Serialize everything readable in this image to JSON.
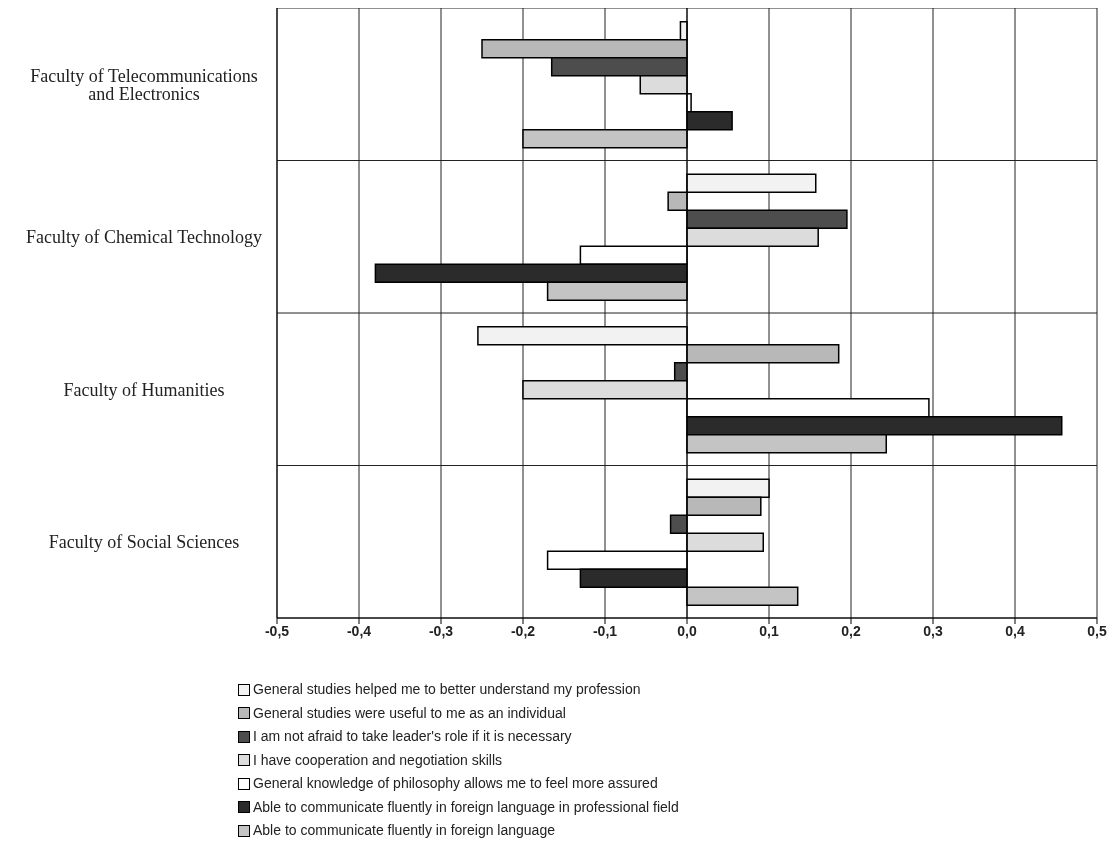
{
  "chart_data": {
    "type": "bar",
    "orientation": "horizontal",
    "categories": [
      "Faculty of Telecommunications and Electronics",
      "Faculty of Chemical Technology",
      "Faculty of Humanities",
      "Faculty of Social Sciences"
    ],
    "series": [
      {
        "name": "General studies helped me to better understand my profession",
        "color": "#f2f2f2",
        "values": [
          -0.008,
          0.157,
          -0.255,
          0.1
        ]
      },
      {
        "name": "General studies were useful to me as an individual",
        "color": "#b8b8b8",
        "values": [
          -0.25,
          -0.023,
          0.185,
          0.09
        ]
      },
      {
        "name": "I am not afraid to take leader's role if it is necessary",
        "color": "#4d4d4d",
        "values": [
          -0.165,
          0.195,
          -0.015,
          -0.02
        ]
      },
      {
        "name": "I have cooperation and negotiation skills",
        "color": "#dcdcdc",
        "values": [
          -0.057,
          0.16,
          -0.2,
          0.093
        ]
      },
      {
        "name": "General knowledge of philosophy allows me to feel more assured",
        "color": "#ffffff",
        "values": [
          0.005,
          -0.13,
          0.295,
          -0.17
        ]
      },
      {
        "name": "Able to communicate fluently in foreign language in professional field",
        "color": "#2b2b2b",
        "values": [
          0.055,
          -0.38,
          0.457,
          -0.13
        ]
      },
      {
        "name": "Able to communicate fluently in foreign language",
        "color": "#c4c4c4",
        "values": [
          -0.2,
          -0.17,
          0.243,
          0.135
        ]
      }
    ],
    "xlim": [
      -0.5,
      0.5
    ],
    "xticks": [
      {
        "value": -0.5,
        "label": "-0,5"
      },
      {
        "value": -0.4,
        "label": "-0,4"
      },
      {
        "value": -0.3,
        "label": "-0,3"
      },
      {
        "value": -0.2,
        "label": "-0,2"
      },
      {
        "value": -0.1,
        "label": "-0,1"
      },
      {
        "value": 0,
        "label": "0,0"
      },
      {
        "value": 0.1,
        "label": "0,1"
      },
      {
        "value": 0.2,
        "label": "0,2"
      },
      {
        "value": 0.3,
        "label": "0,3"
      },
      {
        "value": 0.4,
        "label": "0,4"
      },
      {
        "value": 0.5,
        "label": "0,5"
      }
    ],
    "grid": true,
    "legend": "bottom"
  }
}
